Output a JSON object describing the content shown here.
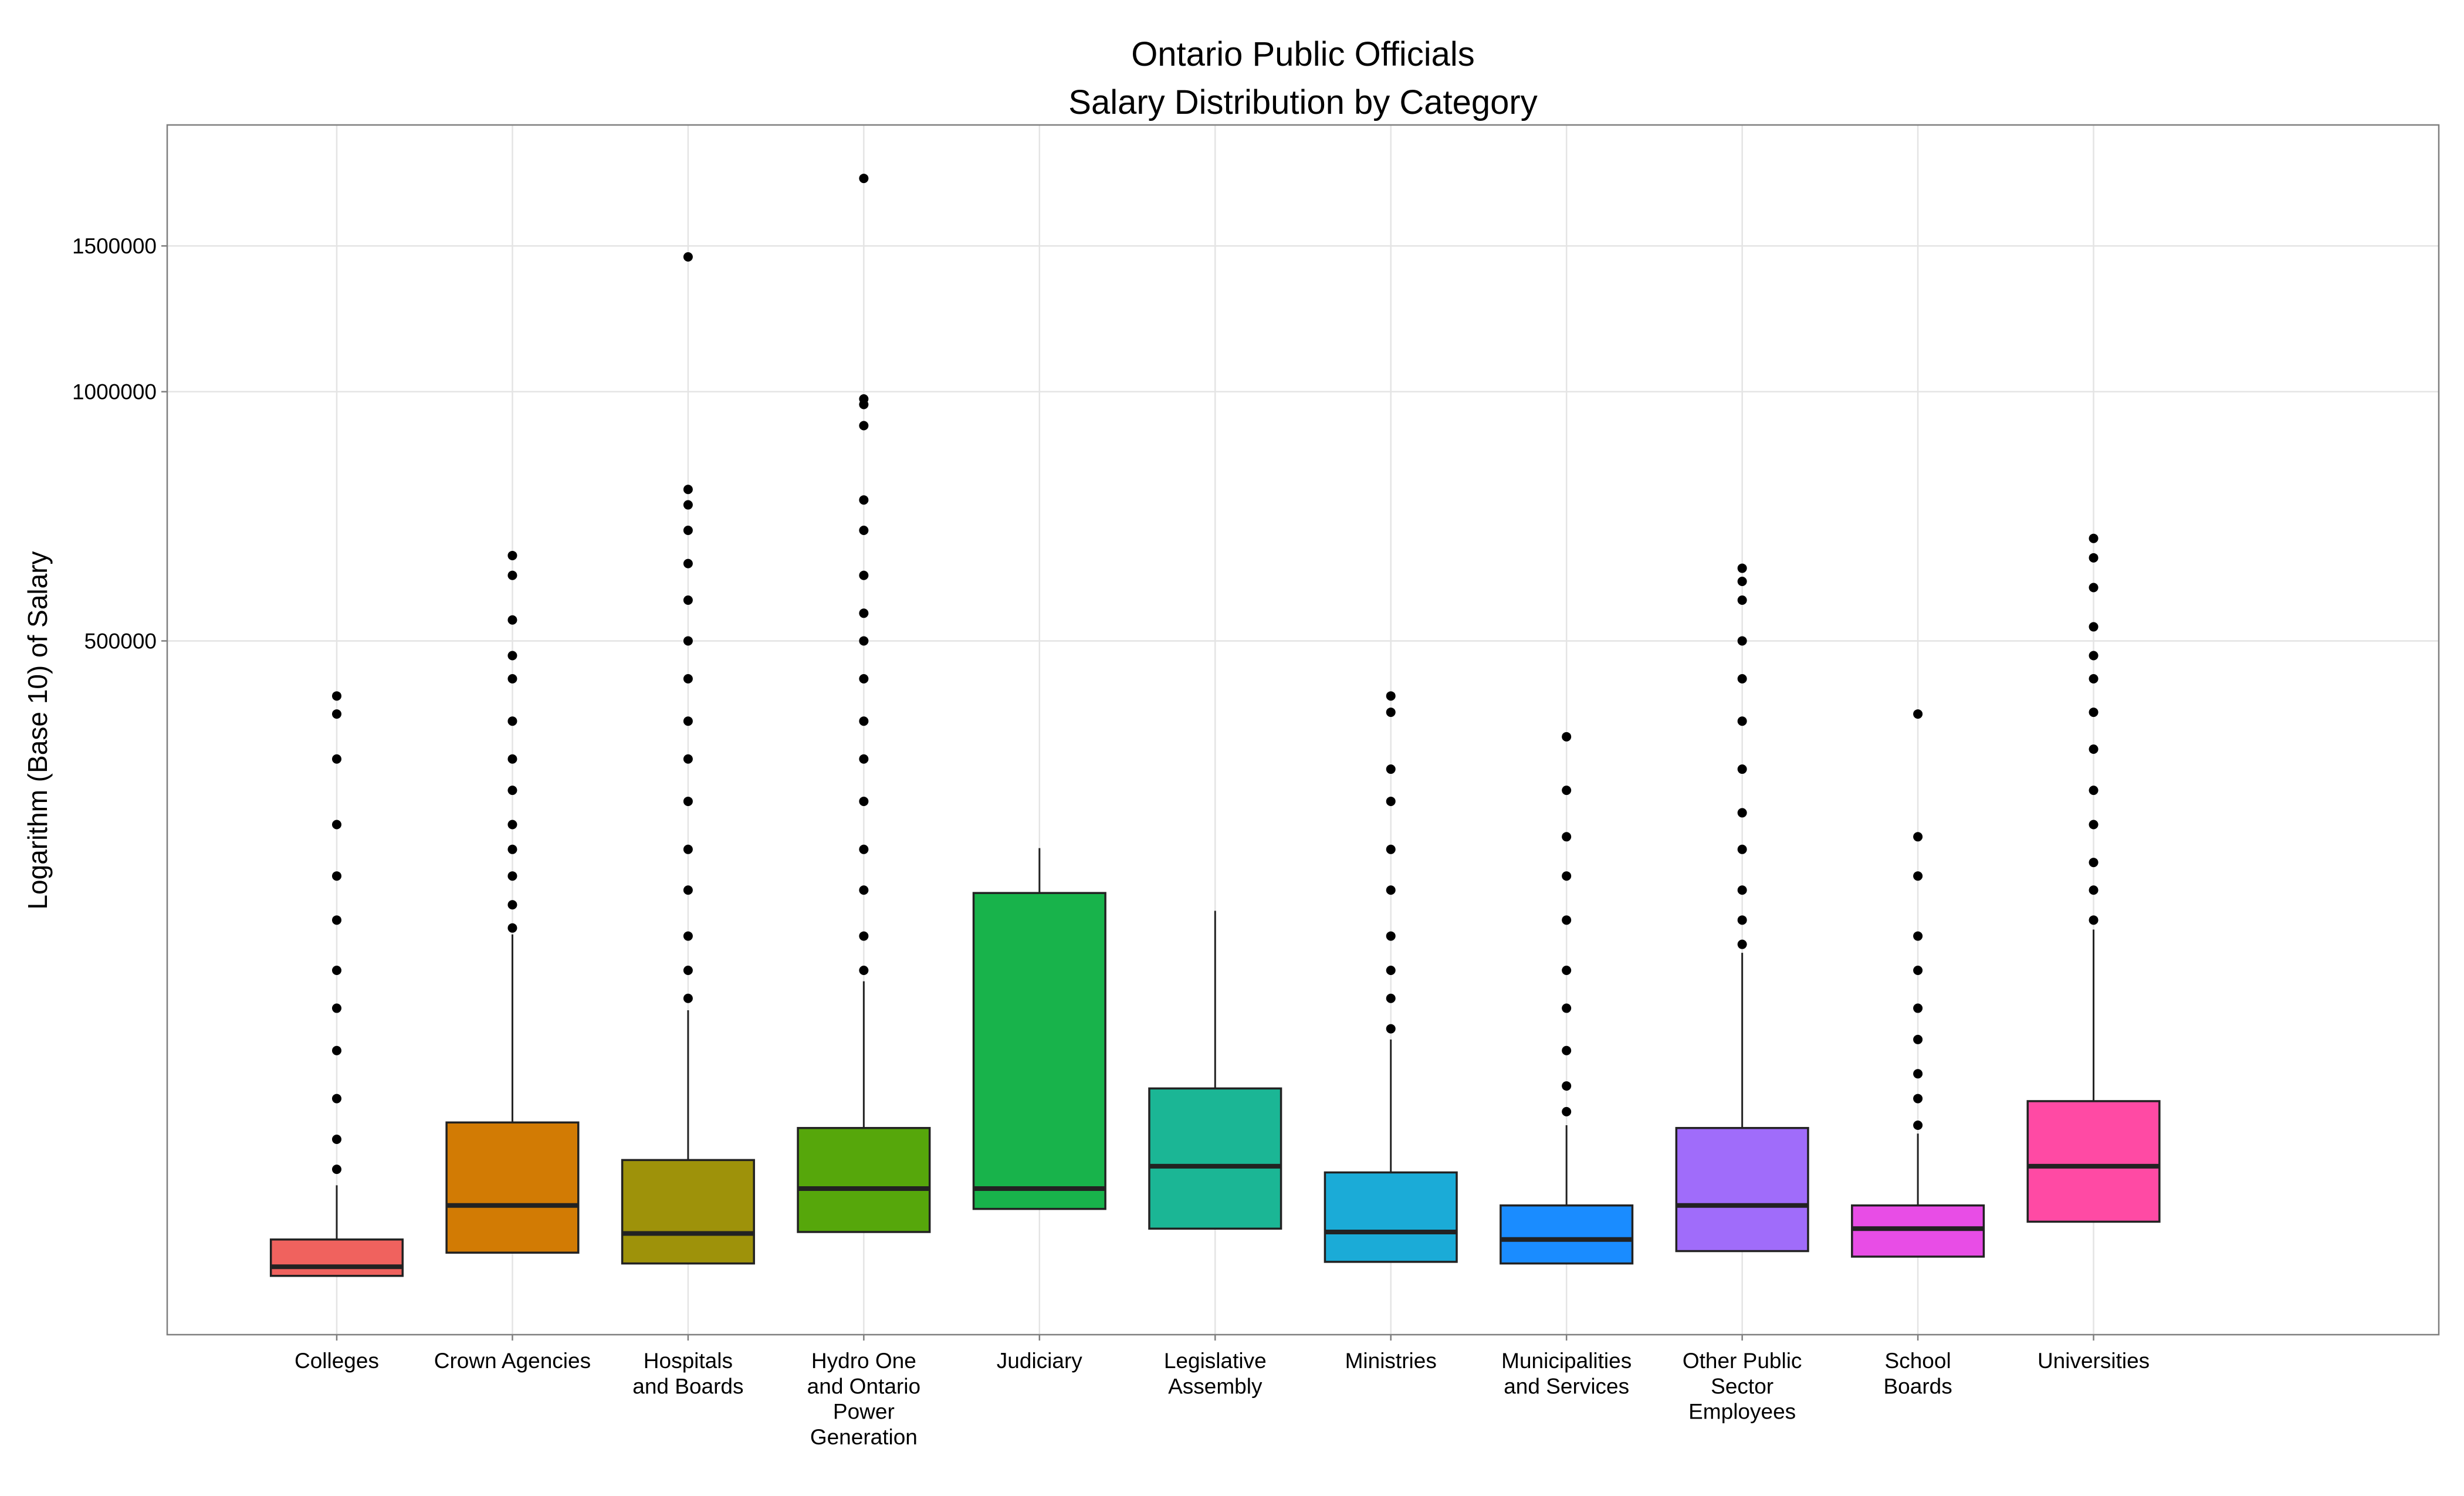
{
  "chart_data": {
    "type": "box",
    "title": "Ontario Public Officials",
    "subtitle": "Salary Distribution by Category",
    "y_label": "Logarithm (Base 10) of Salary",
    "log_scale": true,
    "grid": true,
    "ylim": [
      72600,
      2100000
    ],
    "yticks": [
      500000,
      1000000,
      1500000
    ],
    "categories": [
      "Colleges",
      "Crown Agencies",
      "Hospitals\nand Boards",
      "Hydro One\nand Ontario\nPower\nGeneration",
      "Judiciary",
      "Legislative\nAssembly",
      "Ministries",
      "Municipalities\nand Services",
      "Other Public\nSector\nEmployees",
      "School\nBoards",
      "Universities"
    ],
    "boxes": [
      {
        "color": "#F0625E",
        "q1": 85500,
        "med": 87700,
        "q3": 94600,
        "whishi": 110000,
        "outliers": [
          115000,
          125000,
          140000,
          160000,
          180000,
          200000,
          230000,
          260000,
          300000,
          360000,
          408000,
          429000
        ]
      },
      {
        "color": "#D27B04",
        "q1": 91200,
        "med": 104000,
        "q3": 131000,
        "whishi": 221000,
        "outliers": [
          225000,
          240000,
          260000,
          280000,
          300000,
          330000,
          360000,
          400000,
          450000,
          480000,
          530000,
          600000,
          634000
        ]
      },
      {
        "color": "#9E920A",
        "q1": 88500,
        "med": 96200,
        "q3": 118000,
        "whishi": 179000,
        "outliers": [
          185000,
          200000,
          220000,
          250000,
          280000,
          320000,
          360000,
          400000,
          450000,
          500000,
          560000,
          620000,
          680000,
          730000,
          762000,
          1455000
        ]
      },
      {
        "color": "#56A70B",
        "q1": 96600,
        "med": 109000,
        "q3": 129000,
        "whishi": 194000,
        "outliers": [
          200000,
          220000,
          250000,
          280000,
          320000,
          360000,
          400000,
          450000,
          500000,
          540000,
          600000,
          680000,
          740000,
          910000,
          965000,
          980000,
          1810000
        ]
      },
      {
        "color": "#18B34B",
        "q1": 103000,
        "med": 109000,
        "q3": 248000,
        "whishi": 281000,
        "outliers": []
      },
      {
        "color": "#1BB695",
        "q1": 97500,
        "med": 116000,
        "q3": 144000,
        "whishi": 236000,
        "outliers": []
      },
      {
        "color": "#1BABD7",
        "q1": 88900,
        "med": 96600,
        "q3": 114000,
        "whishi": 165000,
        "outliers": [
          170000,
          185000,
          200000,
          220000,
          250000,
          280000,
          320000,
          350000,
          410000,
          429000
        ]
      },
      {
        "color": "#1A8CFF",
        "q1": 88500,
        "med": 94600,
        "q3": 104000,
        "whishi": 130000,
        "outliers": [
          135000,
          145000,
          160000,
          180000,
          200000,
          230000,
          260000,
          290000,
          330000,
          383000
        ]
      },
      {
        "color": "#A06CFA",
        "q1": 91600,
        "med": 104000,
        "q3": 129000,
        "whishi": 210000,
        "outliers": [
          215000,
          230000,
          250000,
          280000,
          310000,
          350000,
          400000,
          450000,
          500000,
          560000,
          590000,
          612000
        ]
      },
      {
        "color": "#E84DE6",
        "q1": 90200,
        "med": 97500,
        "q3": 104000,
        "whishi": 127000,
        "outliers": [
          130000,
          140000,
          150000,
          165000,
          180000,
          200000,
          220000,
          260000,
          290000,
          408000
        ]
      },
      {
        "color": "#FF4AA4",
        "q1": 99400,
        "med": 116000,
        "q3": 139000,
        "whishi": 224000,
        "outliers": [
          230000,
          250000,
          270000,
          300000,
          330000,
          370000,
          410000,
          450000,
          480000,
          520000,
          580000,
          630000,
          665000
        ]
      }
    ]
  }
}
